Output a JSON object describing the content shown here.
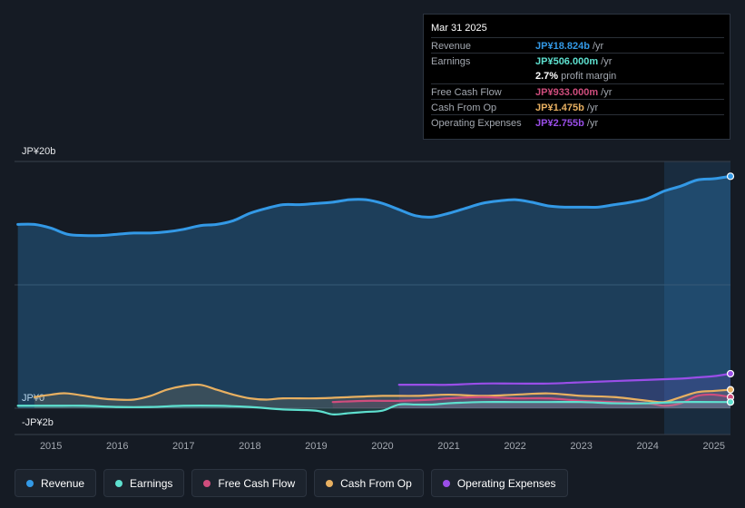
{
  "tooltip": {
    "date": "Mar 31 2025",
    "rows": [
      {
        "label": "Revenue",
        "value": "JP¥18.824b",
        "unit": " /yr",
        "color": "#3399e6"
      },
      {
        "label": "Earnings",
        "value": "JP¥506.000m",
        "unit": " /yr",
        "color": "#5ee0cf"
      },
      {
        "label": "",
        "value": "2.7%",
        "unit": " profit margin",
        "color": "#ffffff"
      },
      {
        "label": "Free Cash Flow",
        "value": "JP¥933.000m",
        "unit": " /yr",
        "color": "#cf4d7d"
      },
      {
        "label": "Cash From Op",
        "value": "JP¥1.475b",
        "unit": " /yr",
        "color": "#e8b061"
      },
      {
        "label": "Operating Expenses",
        "value": "JP¥2.755b",
        "unit": " /yr",
        "color": "#9a4ee8"
      }
    ]
  },
  "legend": [
    {
      "label": "Revenue",
      "color": "#3399e6"
    },
    {
      "label": "Earnings",
      "color": "#5ee0cf"
    },
    {
      "label": "Free Cash Flow",
      "color": "#cf4d7d"
    },
    {
      "label": "Cash From Op",
      "color": "#e8b061"
    },
    {
      "label": "Operating Expenses",
      "color": "#9a4ee8"
    }
  ],
  "chart_data": {
    "type": "area",
    "title": "",
    "unit": "JP¥ billions per year",
    "y_tick_labels": [
      "JP¥20b",
      "JP¥0",
      "-JP¥2b"
    ],
    "x_tick_labels": [
      "2015",
      "2016",
      "2017",
      "2018",
      "2019",
      "2020",
      "2021",
      "2022",
      "2023",
      "2024",
      "2025"
    ],
    "xlim": [
      2014.45,
      2025.25
    ],
    "ylim": [
      -2,
      20
    ],
    "highlight_from": 2024.25,
    "series": [
      {
        "name": "Revenue",
        "color": "#3399e6",
        "x": [
          2014.5,
          2014.75,
          2015.0,
          2015.25,
          2015.5,
          2015.75,
          2016.0,
          2016.25,
          2016.5,
          2016.75,
          2017.0,
          2017.25,
          2017.5,
          2017.75,
          2018.0,
          2018.25,
          2018.5,
          2018.75,
          2019.0,
          2019.25,
          2019.5,
          2019.75,
          2020.0,
          2020.25,
          2020.5,
          2020.75,
          2021.0,
          2021.25,
          2021.5,
          2021.75,
          2022.0,
          2022.25,
          2022.5,
          2022.75,
          2023.0,
          2023.25,
          2023.5,
          2023.75,
          2024.0,
          2024.25,
          2024.5,
          2024.75,
          2025.0,
          2025.25
        ],
        "values": [
          14.9,
          14.9,
          14.6,
          14.1,
          14.0,
          14.0,
          14.1,
          14.2,
          14.2,
          14.3,
          14.5,
          14.8,
          14.9,
          15.2,
          15.8,
          16.2,
          16.5,
          16.5,
          16.6,
          16.7,
          16.9,
          16.9,
          16.6,
          16.1,
          15.6,
          15.5,
          15.8,
          16.2,
          16.6,
          16.8,
          16.9,
          16.7,
          16.4,
          16.3,
          16.3,
          16.3,
          16.5,
          16.7,
          17.0,
          17.6,
          18.0,
          18.5,
          18.6,
          18.8
        ]
      },
      {
        "name": "Earnings",
        "color": "#5ee0cf",
        "x": [
          2014.5,
          2015.0,
          2015.5,
          2016.0,
          2016.5,
          2017.0,
          2017.5,
          2018.0,
          2018.5,
          2019.0,
          2019.25,
          2019.5,
          2019.75,
          2020.0,
          2020.25,
          2020.5,
          2020.75,
          2021.0,
          2021.5,
          2022.0,
          2022.5,
          2023.0,
          2023.5,
          2024.0,
          2024.5,
          2025.25
        ],
        "values": [
          0.2,
          0.2,
          0.2,
          0.1,
          0.1,
          0.2,
          0.2,
          0.1,
          -0.1,
          -0.2,
          -0.5,
          -0.4,
          -0.3,
          -0.2,
          0.3,
          0.3,
          0.3,
          0.4,
          0.5,
          0.5,
          0.5,
          0.5,
          0.4,
          0.4,
          0.5,
          0.5
        ]
      },
      {
        "name": "Free Cash Flow",
        "color": "#cf4d7d",
        "x": [
          2019.25,
          2019.75,
          2020.25,
          2020.75,
          2021.0,
          2021.5,
          2022.0,
          2022.5,
          2023.0,
          2023.5,
          2024.0,
          2024.25,
          2024.5,
          2024.75,
          2025.0,
          2025.25
        ],
        "values": [
          0.5,
          0.6,
          0.6,
          0.7,
          0.8,
          0.9,
          0.8,
          0.8,
          0.6,
          0.5,
          0.4,
          0.2,
          0.4,
          1.0,
          1.1,
          0.9
        ]
      },
      {
        "name": "Cash From Op",
        "color": "#e8b061",
        "x": [
          2014.75,
          2015.0,
          2015.25,
          2015.75,
          2016.0,
          2016.25,
          2016.5,
          2016.75,
          2017.0,
          2017.25,
          2017.5,
          2017.75,
          2018.0,
          2018.25,
          2018.5,
          2019.0,
          2019.5,
          2020.0,
          2020.5,
          2021.0,
          2021.5,
          2022.0,
          2022.5,
          2023.0,
          2023.5,
          2024.0,
          2024.25,
          2024.5,
          2024.75,
          2025.0,
          2025.25
        ],
        "values": [
          0.9,
          1.1,
          1.2,
          0.8,
          0.7,
          0.7,
          1.0,
          1.5,
          1.8,
          1.9,
          1.5,
          1.1,
          0.8,
          0.7,
          0.8,
          0.8,
          0.9,
          1.0,
          1.0,
          1.1,
          1.0,
          1.1,
          1.2,
          1.0,
          0.9,
          0.6,
          0.5,
          0.9,
          1.3,
          1.4,
          1.5
        ]
      },
      {
        "name": "Operating Expenses",
        "color": "#9a4ee8",
        "x": [
          2020.25,
          2020.75,
          2021.0,
          2021.5,
          2022.0,
          2022.5,
          2023.0,
          2023.5,
          2024.0,
          2024.5,
          2024.75,
          2025.0,
          2025.25
        ],
        "values": [
          1.9,
          1.9,
          1.9,
          2.0,
          2.0,
          2.0,
          2.1,
          2.2,
          2.3,
          2.4,
          2.5,
          2.6,
          2.8
        ]
      }
    ]
  }
}
